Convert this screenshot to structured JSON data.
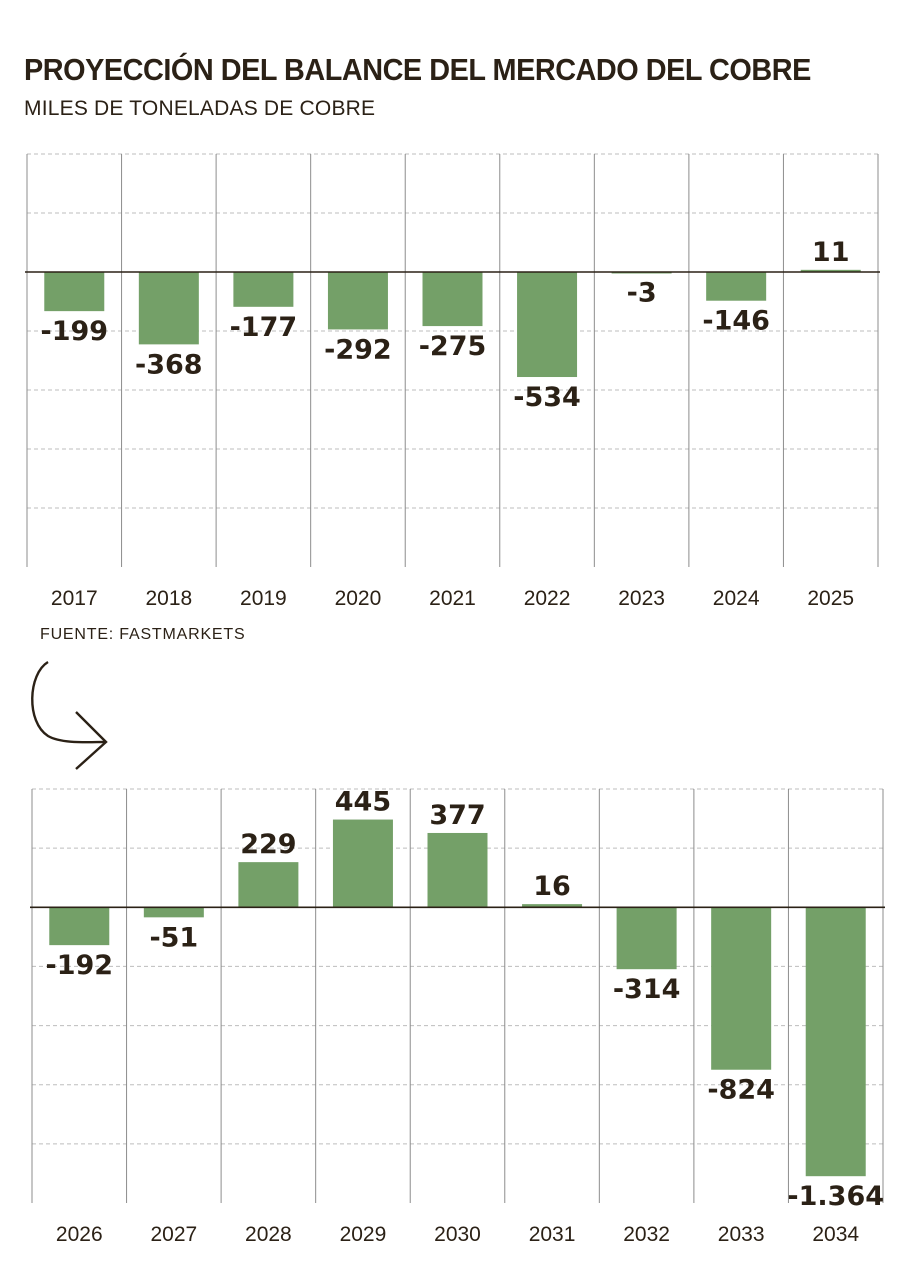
{
  "title": "PROYECCIÓN DEL BALANCE DEL MERCADO DEL COBRE",
  "subtitle": "MILES DE TONELADAS DE COBRE",
  "source": "FUENTE: FASTMARKETS",
  "colors": {
    "bar": "#74a068",
    "text": "#2b2116",
    "grid": "#bdbdbd",
    "zero_line": "#2b2116"
  },
  "chart_data": [
    {
      "type": "bar",
      "categories": [
        "2017",
        "2018",
        "2019",
        "2020",
        "2021",
        "2022",
        "2023",
        "2024",
        "2025"
      ],
      "values": [
        -199,
        -368,
        -177,
        -292,
        -275,
        -534,
        -3,
        -146,
        11
      ],
      "labels": [
        "-199",
        "-368",
        "-177",
        "-292",
        "-275",
        "-534",
        "-3",
        "-146",
        "11"
      ],
      "ylim": [
        -1500,
        600
      ],
      "grid_step": 300,
      "grid": true
    },
    {
      "type": "bar",
      "categories": [
        "2026",
        "2027",
        "2028",
        "2029",
        "2030",
        "2031",
        "2032",
        "2033",
        "2034"
      ],
      "values": [
        -192,
        -51,
        229,
        445,
        377,
        16,
        -314,
        -824,
        -1364
      ],
      "labels": [
        "-192",
        "-51",
        "229",
        "445",
        "377",
        "16",
        "-314",
        "-824",
        "-1.364"
      ],
      "ylim": [
        -1500,
        600
      ],
      "grid_step": 300,
      "grid": true
    }
  ]
}
